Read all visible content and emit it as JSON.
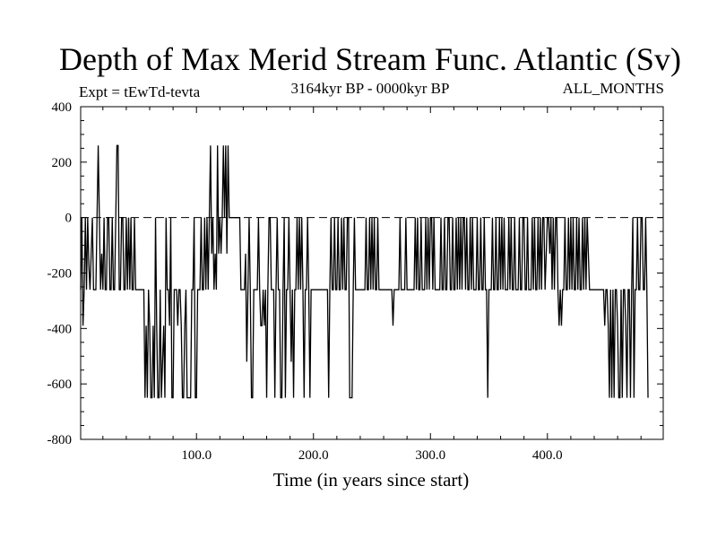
{
  "chart_data": {
    "type": "line",
    "title": "Depth of Max Merid Stream Func. Atlantic (Sv)",
    "subtitle_left": "Expt = tEwTd-tevta",
    "subtitle_center": "3164kyr BP - 0000kyr BP",
    "subtitle_right": "ALL_MONTHS",
    "xlabel": "Time (in years since start)",
    "ylabel": "",
    "xlim": [
      1,
      499
    ],
    "ylim": [
      -800,
      400
    ],
    "x_ticks": [
      100,
      200,
      300,
      400
    ],
    "x_tick_labels": [
      "100.0",
      "200.0",
      "300.0",
      "400.0"
    ],
    "y_ticks": [
      400,
      200,
      0,
      -200,
      -400,
      -600,
      -800
    ],
    "y_tick_labels": [
      "400",
      "200",
      "0",
      "-200",
      "-400",
      "-600",
      "-800"
    ],
    "zero_line": "dashed",
    "series": [
      {
        "x_start": 1,
        "x_step": 1,
        "values": [
          -260,
          0,
          -390,
          -260,
          0,
          -260,
          0,
          -170,
          -260,
          -130,
          0,
          -260,
          -260,
          -260,
          0,
          260,
          0,
          -260,
          -130,
          -260,
          0,
          -260,
          -260,
          0,
          0,
          -260,
          -260,
          0,
          -260,
          -260,
          0,
          260,
          260,
          -260,
          -260,
          0,
          0,
          -260,
          -260,
          0,
          -260,
          0,
          -260,
          0,
          -260,
          -260,
          0,
          -260,
          -260,
          -260,
          -260,
          -260,
          -260,
          -260,
          -260,
          -650,
          -390,
          -650,
          -260,
          -390,
          -650,
          -650,
          -390,
          -650,
          0,
          -390,
          -650,
          -650,
          -260,
          -650,
          -520,
          -390,
          -650,
          0,
          -260,
          -260,
          -390,
          0,
          -650,
          -650,
          -260,
          -260,
          -260,
          -390,
          -260,
          -260,
          -390,
          -650,
          -650,
          -390,
          -260,
          -650,
          -650,
          -650,
          -650,
          -260,
          -260,
          0,
          -650,
          -650,
          -260,
          -260,
          -260,
          0,
          -260,
          -260,
          0,
          -260,
          0,
          -260,
          0,
          260,
          -130,
          0,
          -260,
          -130,
          -260,
          260,
          -130,
          0,
          -130,
          0,
          260,
          0,
          260,
          -130,
          260,
          0,
          0,
          0,
          0,
          0,
          0,
          0,
          0,
          0,
          0,
          -260,
          -260,
          -260,
          -260,
          -130,
          -520,
          -260,
          0,
          -260,
          -650,
          -650,
          -260,
          -260,
          -260,
          -260,
          0,
          -260,
          -390,
          -390,
          -260,
          -390,
          -260,
          -650,
          -260,
          0,
          0,
          -260,
          -260,
          -260,
          -650,
          -260,
          0,
          -260,
          -260,
          -650,
          -650,
          -260,
          0,
          -650,
          -260,
          -260,
          0,
          -260,
          -520,
          -260,
          -650,
          -260,
          -260,
          0,
          -260,
          0,
          -260,
          0,
          -260,
          -650,
          -260,
          -260,
          0,
          -260,
          -650,
          -260,
          -260,
          -260,
          -260,
          -260,
          -260,
          -260,
          -260,
          -260,
          -260,
          -260,
          -260,
          -260,
          -260,
          -260,
          -650,
          -260,
          0,
          -260,
          -260,
          0,
          -260,
          -260,
          0,
          -260,
          -260,
          0,
          -260,
          0,
          -260,
          -260,
          0,
          0,
          -650,
          -650,
          -650,
          -260,
          0,
          -260,
          -260,
          -260,
          -260,
          -260,
          -260,
          -260,
          -260,
          -260,
          0,
          -260,
          -260,
          0,
          -260,
          0,
          -260,
          0,
          -260,
          -260,
          0,
          -260,
          -260,
          -260,
          -260,
          -260,
          -260,
          -260,
          -260,
          -260,
          -260,
          -260,
          -260,
          -390,
          -260,
          -260,
          -260,
          -260,
          -260,
          0,
          -260,
          -260,
          -260,
          -260,
          0,
          -260,
          -260,
          -260,
          -260,
          -260,
          -260,
          -260,
          0,
          -260,
          0,
          -260,
          -260,
          0,
          -260,
          -260,
          -260,
          0,
          -260,
          0,
          -260,
          0,
          0,
          -260,
          0,
          -260,
          -260,
          -260,
          -260,
          -260,
          0,
          -260,
          -260,
          0,
          -260,
          -260,
          0,
          0,
          -260,
          -260,
          0,
          -260,
          -260,
          0,
          -260,
          0,
          -260,
          0,
          -260,
          0,
          0,
          -260,
          0,
          -260,
          -260,
          0,
          -260,
          0,
          -260,
          -260,
          -260,
          0,
          -260,
          -260,
          0,
          -260,
          -260,
          0,
          -260,
          -260,
          -650,
          -260,
          -260,
          -260,
          0,
          -260,
          -260,
          0,
          -260,
          -260,
          0,
          -260,
          0,
          -260,
          0,
          -260,
          -260,
          -260,
          0,
          -260,
          0,
          -260,
          -260,
          0,
          -260,
          -260,
          -260,
          0,
          -260,
          -260,
          0,
          0,
          -260,
          -260,
          0,
          -260,
          -260,
          -260,
          0,
          -260,
          0,
          -260,
          -260,
          0,
          -260,
          0,
          -260,
          0,
          0,
          -260,
          -130,
          0,
          0,
          -130,
          0,
          -260,
          0,
          -260,
          0,
          0,
          -260,
          -390,
          -260,
          -390,
          -260,
          -260,
          0,
          -260,
          -260,
          0,
          -260,
          0,
          -260,
          0,
          -260,
          -260,
          0,
          -260,
          0,
          -260,
          -260,
          0,
          -260,
          0,
          -260,
          0,
          -130,
          -260,
          -260,
          -260,
          -260,
          -260,
          -260,
          -260,
          -260,
          -260,
          -260,
          -260,
          -260,
          -260,
          -390,
          -260,
          -260,
          -390,
          -650,
          -260,
          -650,
          -260,
          -650,
          -260,
          -260,
          -390,
          -650,
          -650,
          -260,
          -650,
          -260,
          -260,
          -390,
          -650,
          -260,
          -260,
          -650,
          -260,
          0,
          -650,
          -260,
          -260,
          0,
          -260,
          -260,
          0,
          0,
          -260,
          -260,
          0,
          -260,
          -650
        ]
      }
    ]
  }
}
